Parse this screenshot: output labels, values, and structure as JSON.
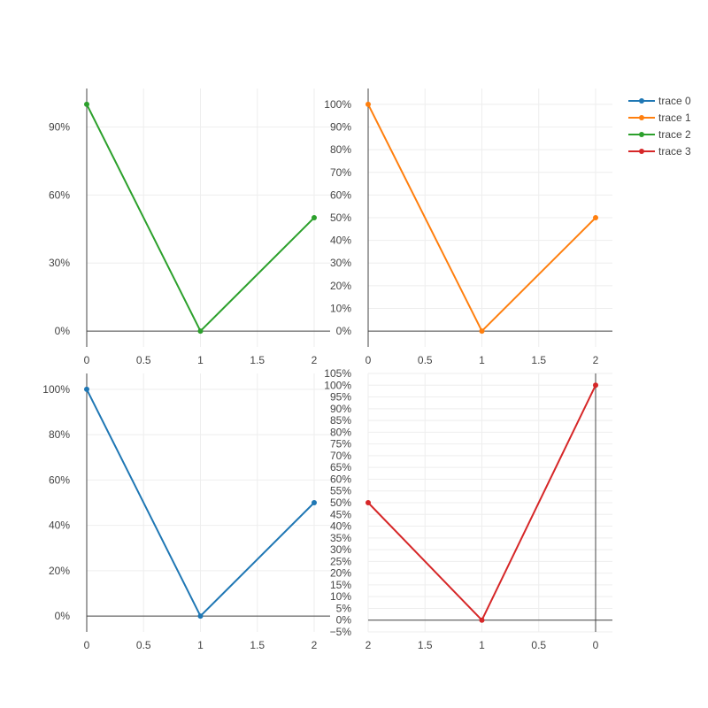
{
  "chart_data": [
    {
      "type": "line",
      "subplot": "top-left",
      "xlim": [
        0,
        2
      ],
      "ylim": [
        -0.07,
        1.07
      ],
      "x_ticks": [
        0,
        0.5,
        1,
        1.5,
        2
      ],
      "x_tick_labels": [
        "0",
        "0.5",
        "1",
        "1.5",
        "2"
      ],
      "y_ticks": [
        0,
        0.3,
        0.6,
        0.9
      ],
      "y_tick_labels": [
        "0%",
        "30%",
        "60%",
        "90%"
      ],
      "grid": true,
      "series": [
        {
          "name": "trace 2",
          "color": "#2ca02c",
          "x": [
            0,
            1,
            2
          ],
          "y": [
            1,
            0,
            0.5
          ]
        }
      ]
    },
    {
      "type": "line",
      "subplot": "top-right",
      "xlim": [
        0,
        2
      ],
      "ylim": [
        -0.07,
        1.07
      ],
      "x_ticks": [
        0,
        0.5,
        1,
        1.5,
        2
      ],
      "x_tick_labels": [
        "0",
        "0.5",
        "1",
        "1.5",
        "2"
      ],
      "y_ticks": [
        0,
        0.1,
        0.2,
        0.3,
        0.4,
        0.5,
        0.6,
        0.7,
        0.8,
        0.9,
        1
      ],
      "y_tick_labels": [
        "0%",
        "10%",
        "20%",
        "30%",
        "40%",
        "50%",
        "60%",
        "70%",
        "80%",
        "90%",
        "100%"
      ],
      "grid": true,
      "series": [
        {
          "name": "trace 1",
          "color": "#ff7f0e",
          "x": [
            0,
            1,
            2
          ],
          "y": [
            1,
            0,
            0.5
          ]
        }
      ]
    },
    {
      "type": "line",
      "subplot": "bottom-left",
      "xlim": [
        0,
        2
      ],
      "ylim": [
        -0.07,
        1.07
      ],
      "x_ticks": [
        0,
        0.5,
        1,
        1.5,
        2
      ],
      "x_tick_labels": [
        "0",
        "0.5",
        "1",
        "1.5",
        "2"
      ],
      "y_ticks": [
        0,
        0.2,
        0.4,
        0.6,
        0.8,
        1
      ],
      "y_tick_labels": [
        "0%",
        "20%",
        "40%",
        "60%",
        "80%",
        "100%"
      ],
      "grid": true,
      "series": [
        {
          "name": "trace 0",
          "color": "#1f77b4",
          "x": [
            0,
            1,
            2
          ],
          "y": [
            1,
            0,
            0.5
          ]
        }
      ]
    },
    {
      "type": "line",
      "subplot": "bottom-right",
      "xlim": [
        2,
        0
      ],
      "x_reversed": true,
      "ylim": [
        -0.05,
        1.05
      ],
      "x_ticks": [
        2,
        1.5,
        1,
        0.5,
        0
      ],
      "x_tick_labels": [
        "2",
        "1.5",
        "1",
        "0.5",
        "0"
      ],
      "y_ticks": [
        -0.05,
        0,
        0.05,
        0.1,
        0.15,
        0.2,
        0.25,
        0.3,
        0.35,
        0.4,
        0.45,
        0.5,
        0.55,
        0.6,
        0.65,
        0.7,
        0.75,
        0.8,
        0.85,
        0.9,
        0.95,
        1,
        1.05
      ],
      "y_tick_labels": [
        "−5%",
        "0%",
        "5%",
        "10%",
        "15%",
        "20%",
        "25%",
        "30%",
        "35%",
        "40%",
        "45%",
        "50%",
        "55%",
        "60%",
        "65%",
        "70%",
        "75%",
        "80%",
        "85%",
        "90%",
        "95%",
        "100%",
        "105%"
      ],
      "grid": true,
      "series": [
        {
          "name": "trace 3",
          "color": "#d62728",
          "x": [
            0,
            1,
            2
          ],
          "y": [
            1,
            0,
            0.5
          ]
        }
      ]
    }
  ],
  "legend": {
    "position": "top-right",
    "items": [
      {
        "label": "trace 0",
        "color": "#1f77b4"
      },
      {
        "label": "trace 1",
        "color": "#ff7f0e"
      },
      {
        "label": "trace 2",
        "color": "#2ca02c"
      },
      {
        "label": "trace 3",
        "color": "#d62728"
      }
    ]
  },
  "colors": {
    "grid": "#eeeeee",
    "axis_line": "#444444",
    "zero_line": "#444444",
    "tick_text": "#444444"
  }
}
